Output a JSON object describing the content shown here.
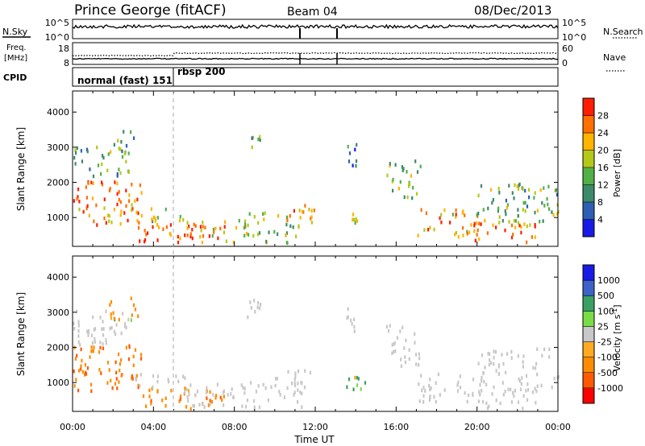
{
  "header": {
    "station": "Prince George (fitACF)",
    "beam": "Beam 04",
    "date": "08/Dec/2013"
  },
  "top_panels": {
    "nsky_label": "N.Sky",
    "nsky_ticks": [
      "10^5",
      "10^0"
    ],
    "nsearch_label": "N.Search",
    "nsearch_ticks": [
      "10^5",
      "10^0"
    ],
    "freq_label_1": "Freq.",
    "freq_label_2": "[MHz]",
    "freq_ticks": [
      "18",
      "8"
    ],
    "nave_label": "Nave",
    "nave_ticks": [
      "60",
      "0"
    ],
    "cpid_label": "CPID",
    "cpid_segments": [
      {
        "label": "normal (fast) 151",
        "start_hour": 0,
        "end_hour": 5
      },
      {
        "label": "rbsp 200",
        "start_hour": 5,
        "end_hour": 24
      }
    ]
  },
  "chart_data": [
    {
      "type": "heatmap",
      "quantity": "Power",
      "ylabel": "Slant Range [km]",
      "xlabel": "",
      "ylim": [
        180,
        4600
      ],
      "yticks": [
        "1000",
        "2000",
        "3000",
        "4000"
      ],
      "xlim_hours": [
        0,
        24
      ],
      "colorbar_label": "Power [dB]",
      "colorbar_ticks": [
        "4",
        "8",
        "12",
        "16",
        "20",
        "24",
        "28"
      ],
      "colorbar_colors": [
        "#1a1ae6",
        "#2d5fb5",
        "#3d8a6a",
        "#52b048",
        "#b4c818",
        "#ffb400",
        "#ff7000",
        "#ff1e00"
      ],
      "echo_regions": [
        {
          "t0": 0.0,
          "t1": 3.5,
          "r0": 800,
          "r1": 2100,
          "db": 26
        },
        {
          "t0": 0.0,
          "t1": 2.8,
          "r0": 2100,
          "r1": 3100,
          "db": 14
        },
        {
          "t0": 1.8,
          "t1": 3.2,
          "r0": 2800,
          "r1": 3500,
          "db": 12
        },
        {
          "t0": 3.2,
          "t1": 7.5,
          "r0": 300,
          "r1": 900,
          "db": 28
        },
        {
          "t0": 3.0,
          "t1": 5.8,
          "r0": 900,
          "r1": 1300,
          "db": 18
        },
        {
          "t0": 5.5,
          "t1": 8.6,
          "r0": 300,
          "r1": 1000,
          "db": 20
        },
        {
          "t0": 8.6,
          "t1": 11.3,
          "r0": 300,
          "r1": 1200,
          "db": 16
        },
        {
          "t0": 10.5,
          "t1": 12.0,
          "r0": 900,
          "r1": 1500,
          "db": 22
        },
        {
          "t0": 8.6,
          "t1": 9.3,
          "r0": 2700,
          "r1": 3400,
          "db": 12
        },
        {
          "t0": 13.5,
          "t1": 14.5,
          "r0": 800,
          "r1": 1200,
          "db": 20
        },
        {
          "t0": 13.5,
          "t1": 14.0,
          "r0": 2500,
          "r1": 3200,
          "db": 8
        },
        {
          "t0": 15.5,
          "t1": 17.2,
          "r0": 1500,
          "r1": 2700,
          "db": 16
        },
        {
          "t0": 17.0,
          "t1": 20.0,
          "r0": 500,
          "r1": 1300,
          "db": 22
        },
        {
          "t0": 19.5,
          "t1": 23.0,
          "r0": 300,
          "r1": 900,
          "db": 28
        },
        {
          "t0": 20.0,
          "t1": 24.0,
          "r0": 800,
          "r1": 2000,
          "db": 14
        }
      ]
    },
    {
      "type": "heatmap",
      "quantity": "Velocity",
      "ylabel": "Slant Range [km]",
      "xlabel": "Time UT",
      "ylim": [
        180,
        4600
      ],
      "yticks": [
        "1000",
        "2000",
        "3000",
        "4000"
      ],
      "xticks": [
        "00:00",
        "04:00",
        "08:00",
        "12:00",
        "16:00",
        "20:00",
        "00:00"
      ],
      "xlim_hours": [
        0,
        24
      ],
      "colorbar_label": "Velocity [m s",
      "colorbar_label_sup": "-1",
      "colorbar_label_end": "]",
      "colorbar_ticks": [
        "-1000",
        "-500",
        "-100",
        "-25",
        "25",
        "100",
        "500",
        "1000"
      ],
      "colorbar_colors": [
        "#ff0000",
        "#ff5a00",
        "#ff8c00",
        "#ffaa20",
        "#c8c8c8",
        "#7adc46",
        "#3aa064",
        "#3c64c8",
        "#1a1ae6"
      ],
      "echo_regions": [
        {
          "t0": 0.0,
          "t1": 3.5,
          "r0": 800,
          "r1": 2100,
          "ms": -500
        },
        {
          "t0": 0.0,
          "t1": 2.8,
          "r0": 2100,
          "r1": 3100,
          "ms": 0
        },
        {
          "t0": 1.8,
          "t1": 3.2,
          "r0": 2800,
          "r1": 3500,
          "ms": -100
        },
        {
          "t0": 3.2,
          "t1": 7.5,
          "r0": 300,
          "r1": 900,
          "ms": -300
        },
        {
          "t0": 3.0,
          "t1": 5.8,
          "r0": 900,
          "r1": 1300,
          "ms": 0
        },
        {
          "t0": 5.5,
          "t1": 8.6,
          "r0": 300,
          "r1": 1000,
          "ms": 0
        },
        {
          "t0": 8.6,
          "t1": 11.3,
          "r0": 300,
          "r1": 1200,
          "ms": 0
        },
        {
          "t0": 10.5,
          "t1": 12.0,
          "r0": 900,
          "r1": 1500,
          "ms": 0
        },
        {
          "t0": 8.6,
          "t1": 9.3,
          "r0": 2700,
          "r1": 3400,
          "ms": 0
        },
        {
          "t0": 13.5,
          "t1": 14.5,
          "r0": 800,
          "r1": 1200,
          "ms": 200
        },
        {
          "t0": 13.5,
          "t1": 14.0,
          "r0": 2500,
          "r1": 3200,
          "ms": 0
        },
        {
          "t0": 15.5,
          "t1": 17.2,
          "r0": 1500,
          "r1": 2700,
          "ms": 0
        },
        {
          "t0": 17.0,
          "t1": 20.0,
          "r0": 500,
          "r1": 1300,
          "ms": 0
        },
        {
          "t0": 19.5,
          "t1": 23.0,
          "r0": 300,
          "r1": 900,
          "ms": 0
        },
        {
          "t0": 20.0,
          "t1": 24.0,
          "r0": 800,
          "r1": 2000,
          "ms": 0
        }
      ]
    }
  ]
}
